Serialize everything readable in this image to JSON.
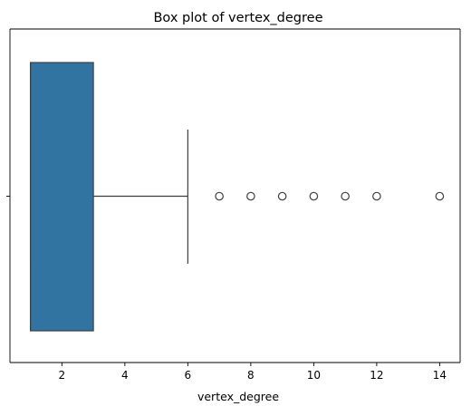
{
  "chart_data": {
    "type": "box",
    "title": "Box plot of vertex_degree",
    "xlabel": "vertex_degree",
    "ylabel": "",
    "xlim": [
      0.35,
      14.65
    ],
    "xticks": [
      2,
      4,
      6,
      8,
      10,
      12,
      14
    ],
    "orientation": "horizontal",
    "grid": false,
    "box": {
      "min": 1,
      "q1": 1,
      "median": 1,
      "q3": 3,
      "whisker_low": 1,
      "whisker_high": 6,
      "color": "#3274a1"
    },
    "outliers": [
      7,
      8,
      9,
      10,
      11,
      12,
      14
    ]
  }
}
